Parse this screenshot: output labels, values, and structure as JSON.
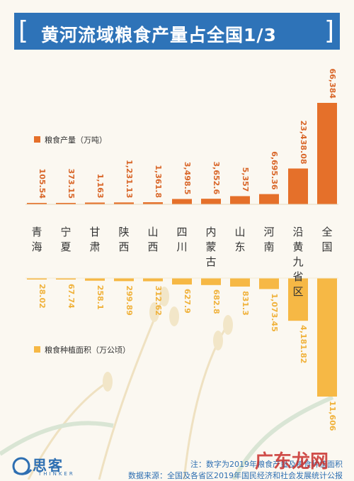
{
  "title": "黄河流域粮食产量占全国1/3",
  "colors": {
    "title_bg": "#2e73b8",
    "production": "#e5702a",
    "area": "#f6b845",
    "text_production": "#d9672a",
    "text_area": "#f0b23c",
    "region_label": "#333333",
    "footer": "#2e6fb2"
  },
  "chart_data": {
    "type": "bar",
    "categories": [
      "青海",
      "宁夏",
      "甘肃",
      "陕西",
      "山西",
      "四川",
      "内蒙古",
      "山东",
      "河南",
      "沿黄九省区",
      "全国"
    ],
    "series": [
      {
        "name": "粮食产量（万吨）",
        "values": [
          105.54,
          373.15,
          1163,
          1231.13,
          1361.8,
          3498.5,
          3652.6,
          5357,
          6695.36,
          23438.08,
          66384
        ],
        "labels": [
          "105.54",
          "373.15",
          "1,163",
          "1,231.13",
          "1,361.8",
          "3,498.5",
          "3,652.6",
          "5,357",
          "6,695.36",
          "23,438.08",
          "66,384"
        ]
      },
      {
        "name": "粮食种植面积（万公顷）",
        "values": [
          28.02,
          67.74,
          258.1,
          299.89,
          312.62,
          627.9,
          682.8,
          831.3,
          1073.45,
          4181.82,
          11606
        ],
        "labels": [
          "28.02",
          "67.74",
          "258.1",
          "299.89",
          "312.62",
          "627.9",
          "682.8",
          "831.3",
          "1,073.45",
          "4,181.82",
          "11,606"
        ]
      }
    ]
  },
  "footer": {
    "note": "注：数字为2019年粮食产量及粮食种植面积",
    "source": "数据来源：全国及各省区2019年国民经济和社会发展统计公报"
  },
  "logo": {
    "cn": "思客",
    "en": "THINKER"
  },
  "watermark": "广东龙网"
}
